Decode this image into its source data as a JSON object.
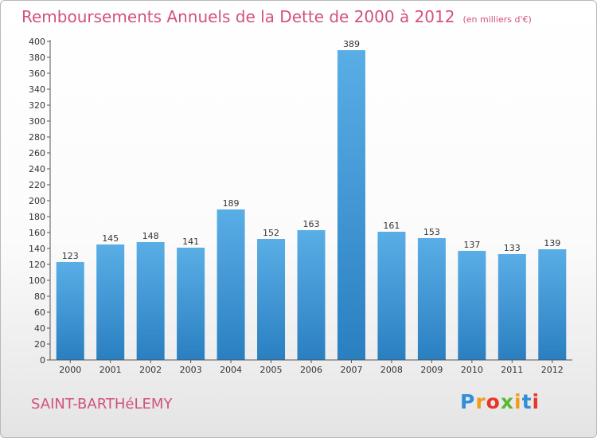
{
  "title": "Remboursements Annuels de la Dette de 2000 à 2012",
  "unit_note": "(en milliers d'€)",
  "commune": "SAINT-BARTHéLEMY",
  "brand": {
    "letters": [
      "P",
      "r",
      "o",
      "x",
      "i",
      "t",
      "i"
    ],
    "colors": [
      "#2f8fd6",
      "#f39a1b",
      "#e8352b",
      "#5bb832",
      "#f39a1b",
      "#2f8fd6",
      "#e8352b"
    ]
  },
  "colors": {
    "bar_light": "#5aaee6",
    "bar_dark": "#2a7fc1",
    "text_accent": "#d2527c"
  },
  "chart_data": {
    "type": "bar",
    "categories": [
      "2000",
      "2001",
      "2002",
      "2003",
      "2004",
      "2005",
      "2006",
      "2007",
      "2008",
      "2009",
      "2010",
      "2011",
      "2012"
    ],
    "values": [
      123,
      145,
      148,
      141,
      189,
      152,
      163,
      389,
      161,
      153,
      137,
      133,
      139
    ],
    "data_labels": [
      "123",
      "145",
      "148",
      "141",
      "189",
      "152",
      "163",
      "389",
      "161",
      "153",
      "137",
      "133",
      "139"
    ],
    "title": "Remboursements Annuels de la Dette de 2000 à 2012",
    "xlabel": "",
    "ylabel": "",
    "ylim": [
      0,
      400
    ],
    "yticks": [
      0,
      20,
      40,
      60,
      80,
      100,
      120,
      140,
      160,
      180,
      200,
      220,
      240,
      260,
      280,
      300,
      320,
      340,
      360,
      380,
      400
    ],
    "grid": false,
    "legend": "none"
  }
}
